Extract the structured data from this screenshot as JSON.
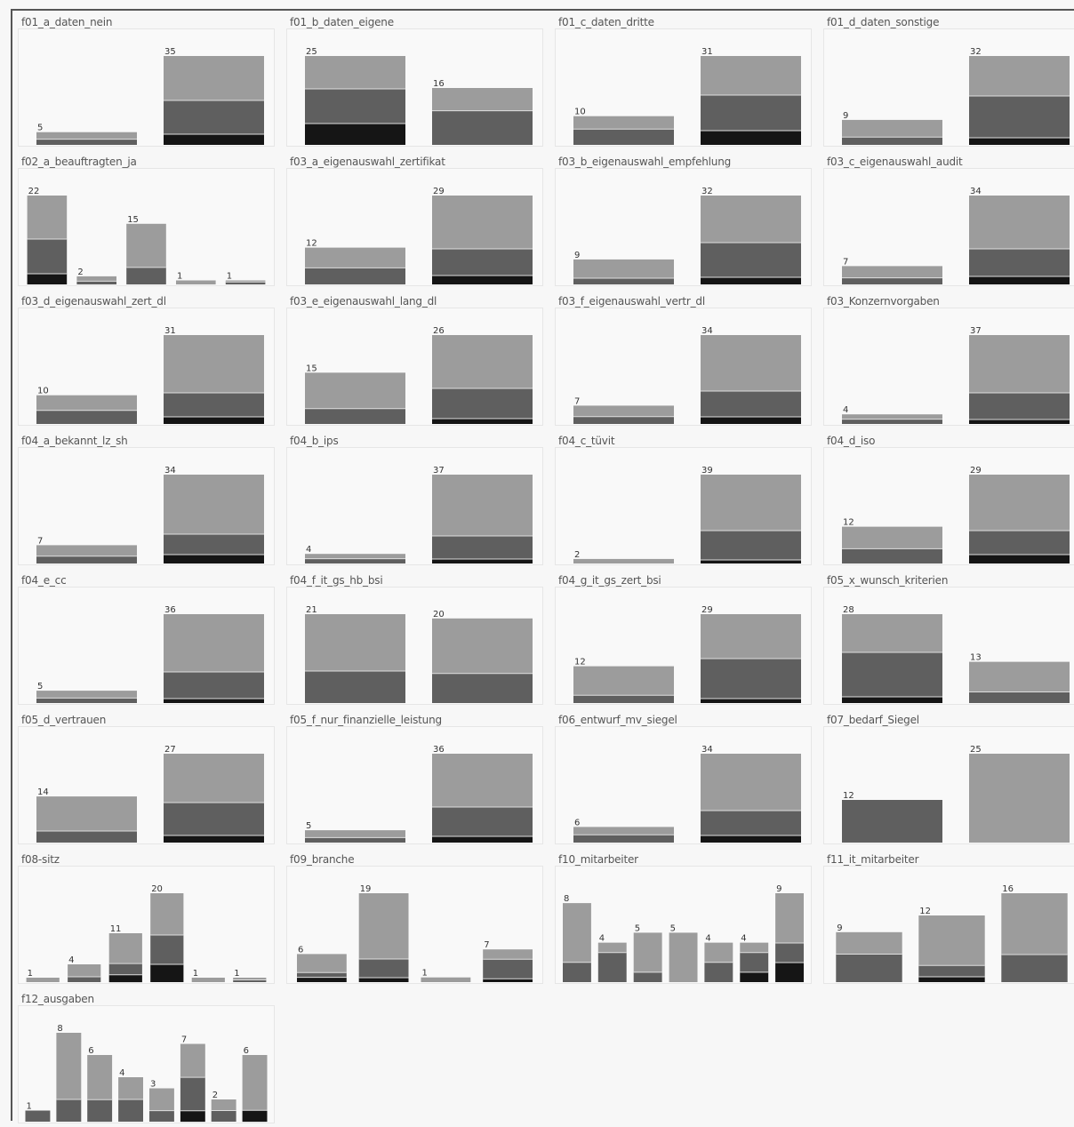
{
  "colors": {
    "light": "#9c9c9c",
    "mid": "#5f5f5f",
    "dark": "#151515",
    "separator": "#dedede"
  },
  "chart_data": [
    {
      "type": "bar",
      "title": "f01_a_daten_nein",
      "values": [
        5,
        35
      ],
      "ylim": [
        0,
        35
      ],
      "stacks": [
        [
          0.55,
          0.45,
          0
        ],
        [
          0.5,
          0.38,
          0.12
        ]
      ]
    },
    {
      "type": "bar",
      "title": "f01_b_daten_eigene",
      "values": [
        25,
        16
      ],
      "ylim": [
        0,
        25
      ],
      "stacks": [
        [
          0.37,
          0.39,
          0.24
        ],
        [
          0.4,
          0.6,
          0
        ]
      ]
    },
    {
      "type": "bar",
      "title": "f01_c_daten_dritte",
      "values": [
        10,
        31
      ],
      "ylim": [
        0,
        31
      ],
      "stacks": [
        [
          0.45,
          0.55,
          0
        ],
        [
          0.44,
          0.4,
          0.16
        ]
      ]
    },
    {
      "type": "bar",
      "title": "f01_d_daten_sonstige",
      "values": [
        9,
        32
      ],
      "ylim": [
        0,
        32
      ],
      "stacks": [
        [
          0.69,
          0.31,
          0
        ],
        [
          0.45,
          0.47,
          0.08
        ]
      ]
    },
    {
      "type": "bar",
      "title": "f02_a_beauftragten_ja",
      "values": [
        22,
        2,
        15,
        1,
        1
      ],
      "ylim": [
        0,
        22
      ],
      "stacks": [
        [
          0.49,
          0.39,
          0.12
        ],
        [
          0.6,
          0.4,
          0
        ],
        [
          0.72,
          0.28,
          0
        ],
        [
          1,
          0,
          0
        ],
        [
          0.4,
          0.6,
          0
        ]
      ]
    },
    {
      "type": "bar",
      "title": "f03_a_eigenauswahl_zertifikat",
      "values": [
        12,
        29
      ],
      "ylim": [
        0,
        29
      ],
      "stacks": [
        [
          0.55,
          0.45,
          0
        ],
        [
          0.6,
          0.3,
          0.1
        ]
      ]
    },
    {
      "type": "bar",
      "title": "f03_b_eigenauswahl_empfehlung",
      "values": [
        9,
        32
      ],
      "ylim": [
        0,
        32
      ],
      "stacks": [
        [
          0.75,
          0.25,
          0
        ],
        [
          0.53,
          0.39,
          0.08
        ]
      ]
    },
    {
      "type": "bar",
      "title": "f03_c_eigenauswahl_audit",
      "values": [
        7,
        34
      ],
      "ylim": [
        0,
        34
      ],
      "stacks": [
        [
          0.64,
          0.36,
          0
        ],
        [
          0.6,
          0.31,
          0.09
        ]
      ]
    },
    {
      "type": "bar",
      "title": "f03_d_eigenauswahl_zert_dl",
      "values": [
        10,
        31
      ],
      "ylim": [
        0,
        31
      ],
      "stacks": [
        [
          0.53,
          0.47,
          0
        ],
        [
          0.65,
          0.27,
          0.08
        ]
      ]
    },
    {
      "type": "bar",
      "title": "f03_e_eigenauswahl_lang_dl",
      "values": [
        15,
        26
      ],
      "ylim": [
        0,
        26
      ],
      "stacks": [
        [
          0.7,
          0.3,
          0
        ],
        [
          0.6,
          0.34,
          0.06
        ]
      ]
    },
    {
      "type": "bar",
      "title": "f03_f_eigenauswahl_vertr_dl",
      "values": [
        7,
        34
      ],
      "ylim": [
        0,
        34
      ],
      "stacks": [
        [
          0.6,
          0.4,
          0
        ],
        [
          0.63,
          0.29,
          0.08
        ]
      ]
    },
    {
      "type": "bar",
      "title": "f03_Konzernvorgaben",
      "values": [
        4,
        37
      ],
      "ylim": [
        0,
        37
      ],
      "stacks": [
        [
          0.5,
          0.5,
          0
        ],
        [
          0.65,
          0.3,
          0.05
        ]
      ]
    },
    {
      "type": "bar",
      "title": "f04_a_bekannt_lz_sh",
      "values": [
        7,
        34
      ],
      "ylim": [
        0,
        34
      ],
      "stacks": [
        [
          0.6,
          0.4,
          0
        ],
        [
          0.67,
          0.23,
          0.1
        ]
      ]
    },
    {
      "type": "bar",
      "title": "f04_b_ips",
      "values": [
        4,
        37
      ],
      "ylim": [
        0,
        37
      ],
      "stacks": [
        [
          0.5,
          0.5,
          0
        ],
        [
          0.69,
          0.26,
          0.05
        ]
      ]
    },
    {
      "type": "bar",
      "title": "f04_c_tüvit",
      "values": [
        2,
        39
      ],
      "ylim": [
        0,
        39
      ],
      "stacks": [
        [
          1,
          0,
          0
        ],
        [
          0.63,
          0.33,
          0.04
        ]
      ]
    },
    {
      "type": "bar",
      "title": "f04_d_iso",
      "values": [
        12,
        29
      ],
      "ylim": [
        0,
        29
      ],
      "stacks": [
        [
          0.6,
          0.4,
          0
        ],
        [
          0.63,
          0.27,
          0.1
        ]
      ]
    },
    {
      "type": "bar",
      "title": "f04_e_cc",
      "values": [
        5,
        36
      ],
      "ylim": [
        0,
        36
      ],
      "stacks": [
        [
          0.6,
          0.4,
          0
        ],
        [
          0.65,
          0.3,
          0.05
        ]
      ]
    },
    {
      "type": "bar",
      "title": "f04_f_it_gs_hb_bsi",
      "values": [
        21,
        20
      ],
      "ylim": [
        0,
        21
      ],
      "stacks": [
        [
          0.64,
          0.36,
          0
        ],
        [
          0.65,
          0.35,
          0
        ]
      ]
    },
    {
      "type": "bar",
      "title": "f04_g_it_gs_zert_bsi",
      "values": [
        12,
        29
      ],
      "ylim": [
        0,
        29
      ],
      "stacks": [
        [
          0.79,
          0.21,
          0
        ],
        [
          0.5,
          0.45,
          0.05
        ]
      ]
    },
    {
      "type": "bar",
      "title": "f05_x_wunsch_kriterien",
      "values": [
        28,
        13
      ],
      "ylim": [
        0,
        28
      ],
      "stacks": [
        [
          0.43,
          0.5,
          0.07
        ],
        [
          0.73,
          0.27,
          0
        ]
      ]
    },
    {
      "type": "bar",
      "title": "f05_d_vertrauen",
      "values": [
        14,
        27
      ],
      "ylim": [
        0,
        27
      ],
      "stacks": [
        [
          0.75,
          0.25,
          0
        ],
        [
          0.55,
          0.37,
          0.08
        ]
      ]
    },
    {
      "type": "bar",
      "title": "f05_f_nur_finanzielle_leistung",
      "values": [
        5,
        36
      ],
      "ylim": [
        0,
        36
      ],
      "stacks": [
        [
          0.6,
          0.4,
          0
        ],
        [
          0.6,
          0.33,
          0.07
        ]
      ]
    },
    {
      "type": "bar",
      "title": "f06_entwurf_mv_siegel",
      "values": [
        6,
        34
      ],
      "ylim": [
        0,
        34
      ],
      "stacks": [
        [
          0.5,
          0.5,
          0
        ],
        [
          0.64,
          0.28,
          0.08
        ]
      ]
    },
    {
      "type": "bar",
      "title": "f07_bedarf_Siegel",
      "values": [
        12,
        25
      ],
      "ylim": [
        0,
        25
      ],
      "stacks": [
        [
          0,
          1,
          0
        ],
        [
          1,
          0,
          0
        ]
      ]
    },
    {
      "type": "bar",
      "title": "f08-sitz",
      "values": [
        1,
        4,
        11,
        20,
        1,
        1
      ],
      "ylim": [
        0,
        20
      ],
      "stacks": [
        [
          1,
          0,
          0
        ],
        [
          0.7,
          0.3,
          0
        ],
        [
          0.62,
          0.23,
          0.15
        ],
        [
          0.47,
          0.33,
          0.2
        ],
        [
          1,
          0,
          0
        ],
        [
          0.5,
          0.5,
          0
        ]
      ]
    },
    {
      "type": "bar",
      "title": "f09_branche",
      "values": [
        6,
        19,
        1,
        7
      ],
      "ylim": [
        0,
        19
      ],
      "stacks": [
        [
          0.66,
          0.17,
          0.17
        ],
        [
          0.74,
          0.21,
          0.05
        ],
        [
          1,
          0,
          0
        ],
        [
          0.3,
          0.6,
          0.1
        ]
      ]
    },
    {
      "type": "bar",
      "title": "f10_mitarbeiter",
      "values": [
        8,
        4,
        5,
        5,
        4,
        4,
        9
      ],
      "ylim": [
        0,
        9
      ],
      "stacks": [
        [
          0.75,
          0.25,
          0
        ],
        [
          0.25,
          0.75,
          0
        ],
        [
          0.8,
          0.2,
          0
        ],
        [
          1,
          0,
          0
        ],
        [
          0.5,
          0.5,
          0
        ],
        [
          0.25,
          0.5,
          0.25
        ],
        [
          0.56,
          0.22,
          0.22
        ]
      ]
    },
    {
      "type": "bar",
      "title": "f11_it_mitarbeiter",
      "values": [
        9,
        12,
        16
      ],
      "ylim": [
        0,
        16
      ],
      "stacks": [
        [
          0.44,
          0.56,
          0
        ],
        [
          0.75,
          0.17,
          0.08
        ],
        [
          0.69,
          0.31,
          0
        ]
      ]
    },
    {
      "type": "bar",
      "title": "f12_ausgaben",
      "values": [
        1,
        8,
        6,
        4,
        3,
        7,
        2,
        6
      ],
      "ylim": [
        0,
        8
      ],
      "stacks": [
        [
          0,
          1,
          0
        ],
        [
          0.75,
          0.25,
          0
        ],
        [
          0.67,
          0.33,
          0
        ],
        [
          0.5,
          0.5,
          0
        ],
        [
          0.67,
          0.33,
          0
        ],
        [
          0.43,
          0.43,
          0.14
        ],
        [
          0.5,
          0.5,
          0
        ],
        [
          0.83,
          0,
          0.17
        ]
      ]
    }
  ]
}
